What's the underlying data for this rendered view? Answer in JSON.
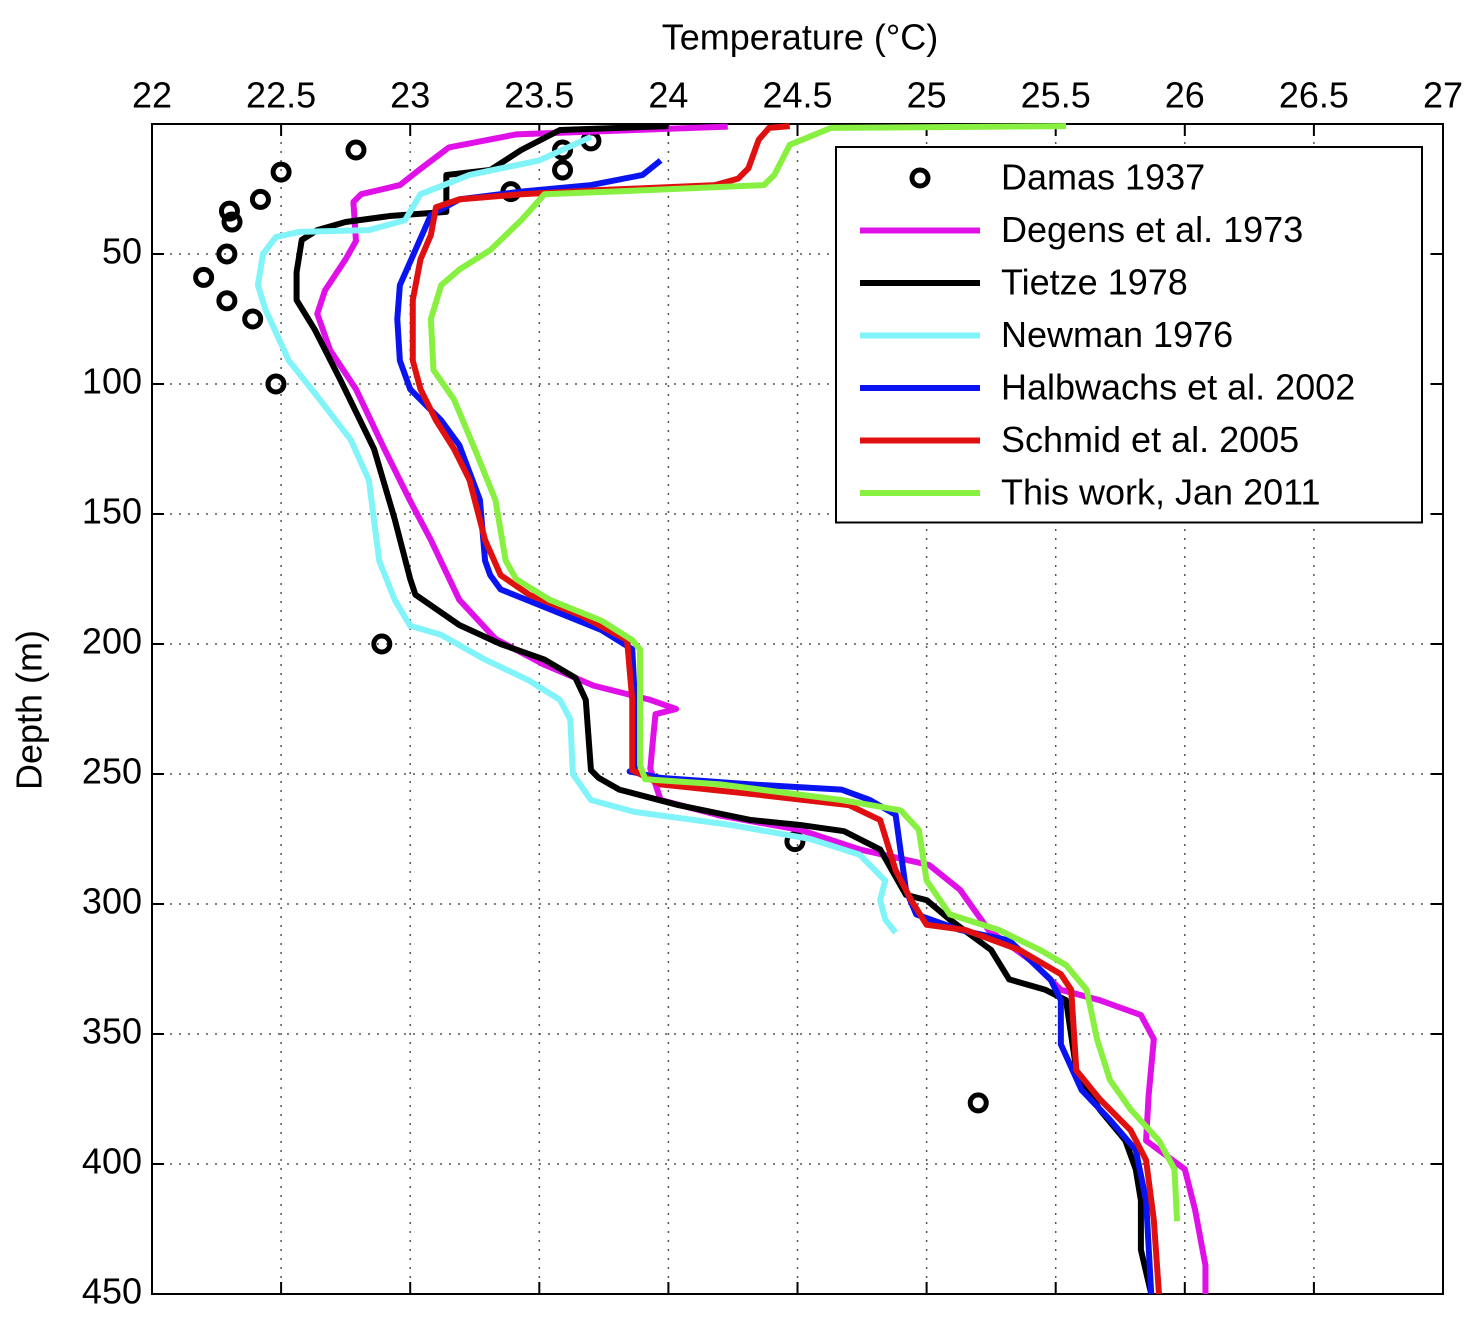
{
  "chart_data": {
    "type": "profile",
    "xlabel": "Temperature (°C)",
    "ylabel": "Depth (m)",
    "xlim": [
      22,
      27
    ],
    "xticks": [
      22,
      22.5,
      23,
      23.5,
      24,
      24.5,
      25,
      25.5,
      26,
      26.5,
      27
    ],
    "ylim": [
      0,
      450
    ],
    "yticks": [
      50,
      100,
      150,
      200,
      250,
      300,
      350,
      400,
      450
    ],
    "y_reversed": true,
    "xaxis_position": "top",
    "grid": true,
    "legend_position": "upper right",
    "series": [
      {
        "name": "Damas 1937",
        "color": "#000000",
        "mode": "markers",
        "x": [
          22.79,
          23.7,
          23.59,
          23.59,
          22.5,
          23.39,
          22.42,
          22.3,
          22.31,
          22.29,
          22.2,
          22.29,
          22.39,
          22.48,
          22.89,
          24.49,
          25.2
        ],
        "y": [
          10,
          6.5,
          10,
          17.7,
          18.5,
          26,
          29,
          33.5,
          37.7,
          50,
          59,
          68,
          75,
          100,
          200,
          276,
          376.5
        ]
      },
      {
        "name": "Degens et al. 1973",
        "color": "#e010e8",
        "mode": "lines",
        "x": [
          24.23,
          23.41,
          23.15,
          23.03,
          22.96,
          22.81,
          22.78,
          22.79,
          22.75,
          22.67,
          22.64,
          22.69,
          22.79,
          22.9,
          23.0,
          23.08,
          23.19,
          23.33,
          23.52,
          23.71,
          23.93,
          24.03,
          23.95,
          23.94,
          23.93,
          23.97,
          24.2,
          24.51,
          24.74,
          25.01,
          25.13,
          25.24,
          25.4,
          25.52,
          25.67,
          25.83,
          25.88,
          25.86,
          25.85,
          26.0,
          26.04,
          26.08,
          26.08
        ],
        "y": [
          1,
          4,
          9,
          18,
          23.5,
          27,
          30,
          45,
          52,
          64,
          73,
          87,
          102,
          125,
          145,
          160,
          183,
          198,
          208,
          216,
          221.5,
          225,
          227,
          237,
          248,
          260,
          266,
          271.5,
          279,
          285,
          294.6,
          310,
          321.5,
          333,
          337,
          342.7,
          352,
          373.5,
          391,
          402,
          417.7,
          439,
          450
        ]
      },
      {
        "name": "Tietze 1978",
        "color": "#000000",
        "mode": "lines",
        "x": [
          24.0,
          23.58,
          23.43,
          23.31,
          23.14,
          23.14,
          22.92,
          22.75,
          22.64,
          22.58,
          22.56,
          22.56,
          22.63,
          22.73,
          22.86,
          22.94,
          23.0,
          23.02,
          23.19,
          23.35,
          23.52,
          23.64,
          23.68,
          23.7,
          23.73,
          23.81,
          24.04,
          24.32,
          24.51,
          24.68,
          24.82,
          24.92,
          25.0,
          25.09,
          25.25,
          25.32,
          25.46,
          25.54,
          25.58,
          25.67,
          25.77,
          25.81,
          25.83,
          25.83,
          25.87
        ],
        "y": [
          0.8,
          2.3,
          10,
          17.7,
          19.6,
          33.8,
          35.4,
          37.7,
          40.8,
          44.6,
          57,
          67.7,
          79,
          98.5,
          125,
          152,
          175,
          181,
          192.7,
          200,
          206,
          213,
          221.5,
          248.5,
          251.5,
          256,
          262,
          267.7,
          269.6,
          272,
          279,
          296.5,
          298.5,
          306,
          317.7,
          329,
          333,
          337,
          364,
          379,
          391,
          402,
          414,
          433,
          450
        ]
      },
      {
        "name": "Newman 1976",
        "color": "#80f4f8",
        "mode": "lines",
        "x": [
          23.7,
          23.5,
          23.23,
          23.04,
          22.98,
          22.84,
          22.57,
          22.48,
          22.43,
          22.41,
          22.44,
          22.53,
          22.65,
          22.77,
          22.84,
          22.88,
          22.94,
          23.0,
          23.12,
          23.29,
          23.46,
          23.58,
          23.62,
          23.63,
          23.7,
          23.87,
          24.24,
          24.55,
          24.74,
          24.84,
          24.82,
          24.84,
          24.88
        ],
        "y": [
          5,
          14,
          19.6,
          27,
          37,
          40.8,
          41.5,
          43.5,
          50,
          62,
          71.5,
          91,
          106,
          121.5,
          137,
          168,
          183,
          193,
          196.5,
          206,
          214,
          221.5,
          229,
          250,
          260,
          264.6,
          269.6,
          275,
          281,
          291,
          298.5,
          306,
          311
        ]
      },
      {
        "name": "Halbwachs et al. 2002",
        "color": "#0a14f0",
        "mode": "lines",
        "x": [
          23.97,
          23.9,
          23.7,
          23.43,
          23.19,
          23.08,
          23.02,
          22.96,
          22.95,
          22.96,
          23.0,
          23.12,
          23.19,
          23.27,
          23.29,
          23.31,
          23.35,
          23.5,
          23.74,
          23.86,
          23.87,
          23.87,
          23.85,
          23.97,
          24.32,
          24.67,
          24.78,
          24.88,
          24.92,
          24.96,
          25.13,
          25.32,
          25.48,
          25.52,
          25.52,
          25.6,
          25.71,
          25.81,
          25.85,
          25.87
        ],
        "y": [
          14,
          19.6,
          23.5,
          26,
          29,
          35,
          48.5,
          62,
          75,
          91,
          102,
          114,
          123.5,
          144.6,
          168,
          173.5,
          179,
          185,
          194.6,
          202,
          221.5,
          248.5,
          249,
          251.5,
          254,
          256,
          260,
          265.7,
          294.6,
          304,
          310,
          314,
          329,
          337,
          354,
          371.5,
          383,
          394.6,
          414,
          450
        ]
      },
      {
        "name": "Schmid et al. 2005",
        "color": "#e01010",
        "mode": "lines",
        "x": [
          24.47,
          24.39,
          24.35,
          24.31,
          24.27,
          24.18,
          23.74,
          23.43,
          23.19,
          23.1,
          23.08,
          23.04,
          23.01,
          23.01,
          23.04,
          23.1,
          23.17,
          23.23,
          23.29,
          23.35,
          23.46,
          23.66,
          23.84,
          23.86,
          23.86,
          23.97,
          24.35,
          24.7,
          24.82,
          24.88,
          24.92,
          24.94,
          25.0,
          25.15,
          25.36,
          25.52,
          25.56,
          25.58,
          25.67,
          25.79,
          25.85,
          25.88,
          25.9
        ],
        "y": [
          0.8,
          1.5,
          6,
          17,
          21,
          23.5,
          25.4,
          27,
          29,
          32,
          42.7,
          52,
          67.7,
          91,
          102,
          114,
          125,
          137,
          160,
          173.5,
          181,
          189,
          198.5,
          221.5,
          248.5,
          254,
          258,
          262,
          267.7,
          287,
          294.6,
          298.5,
          308,
          310,
          317.7,
          327,
          333,
          364,
          375,
          387,
          398.5,
          421.5,
          450
        ]
      },
      {
        "name": "This work, Jan 2011",
        "color": "#88f040",
        "mode": "lines",
        "x": [
          25.54,
          24.63,
          24.47,
          24.41,
          24.37,
          23.93,
          23.52,
          23.43,
          23.31,
          23.19,
          23.12,
          23.08,
          23.09,
          23.17,
          23.25,
          23.33,
          23.37,
          23.41,
          23.54,
          23.74,
          23.86,
          23.89,
          23.89,
          23.91,
          24.2,
          24.67,
          24.9,
          24.97,
          25.0,
          25.09,
          25.28,
          25.44,
          25.54,
          25.62,
          25.66,
          25.71,
          25.79,
          25.9,
          25.96,
          25.97
        ],
        "y": [
          0.8,
          1.5,
          8,
          19.6,
          23.5,
          25.4,
          27,
          37,
          48.5,
          56,
          62,
          75,
          94.6,
          106,
          125,
          144.6,
          168,
          175,
          183,
          191,
          198.5,
          202,
          246.5,
          252,
          254,
          260,
          264,
          271.5,
          291,
          304,
          310,
          317.7,
          323.5,
          333,
          352,
          367.7,
          379,
          391,
          402,
          422
        ]
      }
    ]
  }
}
